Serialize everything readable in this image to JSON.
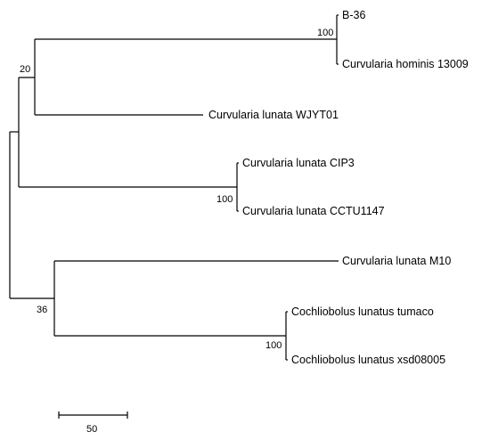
{
  "tree": {
    "taxa": [
      "B-36",
      "Curvularia hominis 13009",
      "Curvularia lunata WJYT01",
      "Curvularia lunata CIP3",
      "Curvularia lunata CCTU1147",
      "Curvularia lunata M10",
      "Cochliobolus lunatus tumaco",
      "Cochliobolus lunatus xsd08005"
    ],
    "bootstrap": {
      "b36_hominis": "100",
      "upper_clade": "20",
      "cip3_cctu": "100",
      "lower_clade": "36",
      "tumaco_xsd": "100"
    }
  },
  "scale_bar": {
    "label": "50"
  }
}
